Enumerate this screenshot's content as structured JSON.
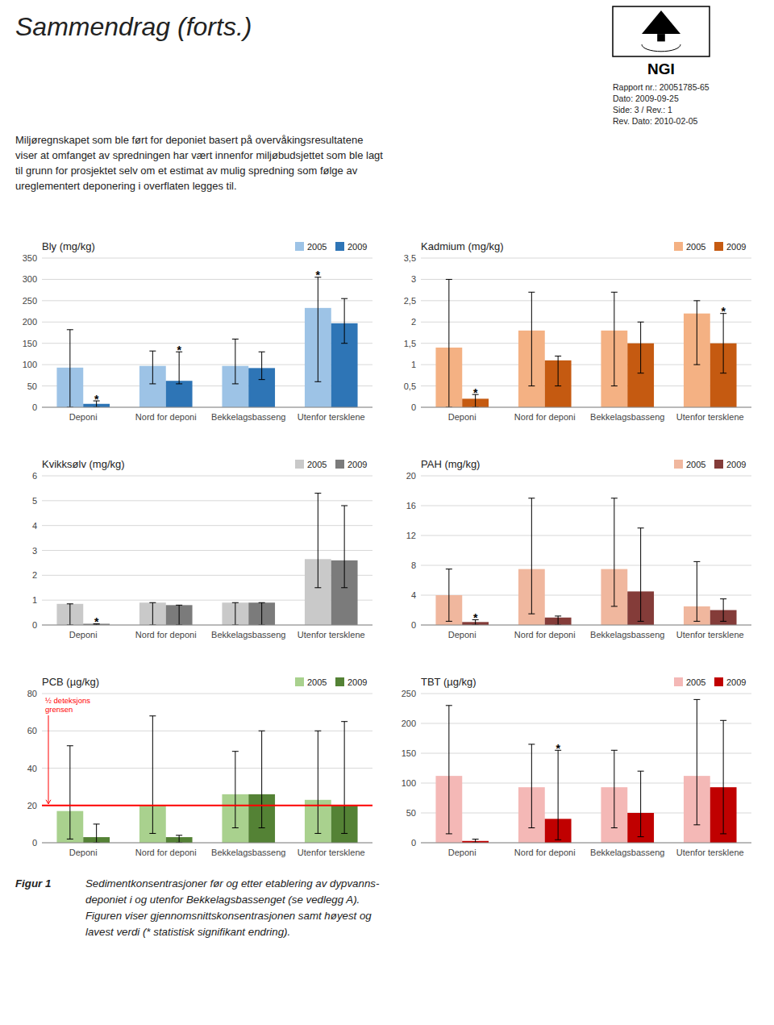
{
  "title": "Sammendrag (forts.)",
  "logo_text": "NGI",
  "report_info_lines": [
    "Rapport nr.: 20051785-65",
    "Dato: 2009-09-25",
    "Side: 3 / Rev.: 1",
    "Rev. Dato: 2010-02-05"
  ],
  "intro_text": "Miljøregnskapet som ble ført for deponiet basert på overvåkingsresultatene\nviser at omfanget av spredningen har vært innenfor miljøbudsjettet som ble lagt\ntil grunn for prosjektet selv om et estimat av mulig spredning som følge av\nureglementert deponering i overflaten legges til.",
  "caption_label": "Figur 1",
  "caption_text": "Sedimentkonsentrasjoner før og etter etablering av dypvanns-\ndeponiet i og utenfor Bekkelagsbassenget (se vedlegg A).\nFiguren viser gjennomsnittskonsentrasjonen samt høyest og\nlavest verdi (* statistisk signifikant endring).",
  "chart_data": [
    {
      "type": "bar",
      "title": "Bly (mg/kg)",
      "categories": [
        "Deponi",
        "Nord for deponi",
        "Bekkelagsbasseng",
        "Utenfor tersklene"
      ],
      "series": [
        {
          "name": "2005",
          "color": "#9dc3e6",
          "values": [
            93,
            97,
            97,
            233
          ],
          "error_low": [
            0,
            55,
            55,
            60
          ],
          "error_high": [
            182,
            132,
            160,
            305
          ]
        },
        {
          "name": "2009",
          "color": "#2e75b6",
          "values": [
            8,
            62,
            92,
            197
          ],
          "error_low": [
            0,
            55,
            65,
            150
          ],
          "error_high": [
            15,
            130,
            130,
            255
          ]
        }
      ],
      "annotations": [
        {
          "text": "*",
          "category": "Deponi",
          "series": "2009"
        },
        {
          "text": "*",
          "category": "Nord for deponi",
          "series": "2009"
        },
        {
          "text": "*",
          "category": "Utenfor tersklene",
          "series": "2005"
        }
      ],
      "ylim": [
        0,
        350
      ],
      "yticks": [
        0,
        50,
        100,
        150,
        200,
        250,
        300,
        350
      ],
      "grid": true,
      "legend": "upper right"
    },
    {
      "type": "bar",
      "title": "Kadmium (mg/kg)",
      "categories": [
        "Deponi",
        "Nord for deponi",
        "Bekkelagsbasseng",
        "Utenfor tersklene"
      ],
      "series": [
        {
          "name": "2005",
          "color": "#f4b183",
          "values": [
            1.4,
            1.8,
            1.8,
            2.2
          ],
          "error_low": [
            0.0,
            0.5,
            0.5,
            1.0
          ],
          "error_high": [
            3.0,
            2.7,
            2.7,
            2.5
          ]
        },
        {
          "name": "2009",
          "color": "#c55a11",
          "values": [
            0.2,
            1.1,
            1.5,
            1.5
          ],
          "error_low": [
            0.0,
            0.5,
            0.8,
            0.8
          ],
          "error_high": [
            0.3,
            1.2,
            2.0,
            2.2
          ]
        }
      ],
      "annotations": [
        {
          "text": "*",
          "category": "Deponi",
          "series": "2009"
        },
        {
          "text": "*",
          "category": "Utenfor tersklene",
          "series": "2009"
        }
      ],
      "ylim": [
        0,
        3.5
      ],
      "yticks": [
        0,
        {
          "value": 0.5,
          "label": "0,5"
        },
        1,
        {
          "value": 1.5,
          "label": "1,5"
        },
        2,
        {
          "value": 2.5,
          "label": "2,5"
        },
        3,
        {
          "value": 3.5,
          "label": "3,5"
        }
      ],
      "grid": true,
      "legend": "upper right"
    },
    {
      "type": "bar",
      "title": "Kvikksølv (mg/kg)",
      "categories": [
        "Deponi",
        "Nord for deponi",
        "Bekkelagsbasseng",
        "Utenfor tersklene"
      ],
      "series": [
        {
          "name": "2005",
          "color": "#c9c9c9",
          "values": [
            0.85,
            0.9,
            0.9,
            2.65
          ],
          "error_low": [
            0.0,
            0.0,
            0.0,
            1.5
          ],
          "error_high": [
            0.85,
            0.9,
            0.9,
            5.3
          ]
        },
        {
          "name": "2009",
          "color": "#7b7b7b",
          "values": [
            0.05,
            0.8,
            0.9,
            2.6
          ],
          "error_low": [
            0.0,
            0.0,
            0.0,
            1.5
          ],
          "error_high": [
            0.05,
            0.8,
            0.9,
            4.8
          ]
        }
      ],
      "annotations": [
        {
          "text": "*",
          "category": "Deponi",
          "series": "2009"
        }
      ],
      "ylim": [
        0,
        6
      ],
      "yticks": [
        0,
        1,
        2,
        3,
        4,
        5,
        6
      ],
      "grid": true,
      "legend": "upper right"
    },
    {
      "type": "bar",
      "title": "PAH (mg/kg)",
      "categories": [
        "Deponi",
        "Nord for deponi",
        "Bekkelagsbasseng",
        "Utenfor tersklene"
      ],
      "series": [
        {
          "name": "2005",
          "color": "#f0b79e",
          "values": [
            4.0,
            7.5,
            7.5,
            2.5
          ],
          "error_low": [
            0.5,
            1.5,
            2.5,
            0.5
          ],
          "error_high": [
            7.5,
            17.0,
            17.0,
            8.5
          ]
        },
        {
          "name": "2009",
          "color": "#843c39",
          "values": [
            0.4,
            1.0,
            4.5,
            2.0
          ],
          "error_low": [
            0.0,
            0.0,
            0.5,
            0.5
          ],
          "error_high": [
            0.7,
            1.2,
            13.0,
            3.5
          ]
        }
      ],
      "annotations": [
        {
          "text": "*",
          "category": "Deponi",
          "series": "2009"
        }
      ],
      "ylim": [
        0,
        20
      ],
      "yticks": [
        0,
        4,
        8,
        12,
        16,
        20
      ],
      "grid": true,
      "legend": "upper right"
    },
    {
      "type": "bar",
      "title": "PCB (µg/kg)",
      "categories": [
        "Deponi",
        "Nord for deponi",
        "Bekkelagsbasseng",
        "Utenfor tersklene"
      ],
      "series": [
        {
          "name": "2005",
          "color": "#a9d18e",
          "values": [
            17,
            20,
            26,
            23
          ],
          "error_low": [
            2,
            5,
            8,
            5
          ],
          "error_high": [
            52,
            68,
            49,
            60
          ]
        },
        {
          "name": "2009",
          "color": "#548235",
          "values": [
            3,
            3,
            26,
            20
          ],
          "error_low": [
            0,
            0,
            8,
            5
          ],
          "error_high": [
            10,
            4,
            60,
            65
          ]
        }
      ],
      "annotations": [],
      "reference_lines": [
        {
          "value": 20,
          "label": "½ deteksjons\ngrensen",
          "color": "red"
        }
      ],
      "ylim": [
        0,
        80
      ],
      "yticks": [
        0,
        20,
        40,
        60,
        80
      ],
      "grid": true,
      "legend": "upper right"
    },
    {
      "type": "bar",
      "title": "TBT (µg/kg)",
      "categories": [
        "Deponi",
        "Nord for deponi",
        "Bekkelagsbasseng",
        "Utenfor tersklene"
      ],
      "series": [
        {
          "name": "2005",
          "color": "#f4b8b6",
          "values": [
            112,
            93,
            93,
            112
          ],
          "error_low": [
            15,
            25,
            25,
            30
          ],
          "error_high": [
            230,
            165,
            155,
            240
          ]
        },
        {
          "name": "2009",
          "color": "#c00000",
          "values": [
            3,
            40,
            50,
            93
          ],
          "error_low": [
            0,
            5,
            10,
            15
          ],
          "error_high": [
            6,
            155,
            120,
            205
          ]
        }
      ],
      "annotations": [
        {
          "text": "*",
          "category": "Nord for deponi",
          "series": "2009"
        }
      ],
      "ylim": [
        0,
        250
      ],
      "yticks": [
        0,
        50,
        100,
        150,
        200,
        250
      ],
      "grid": true,
      "legend": "upper right"
    }
  ]
}
